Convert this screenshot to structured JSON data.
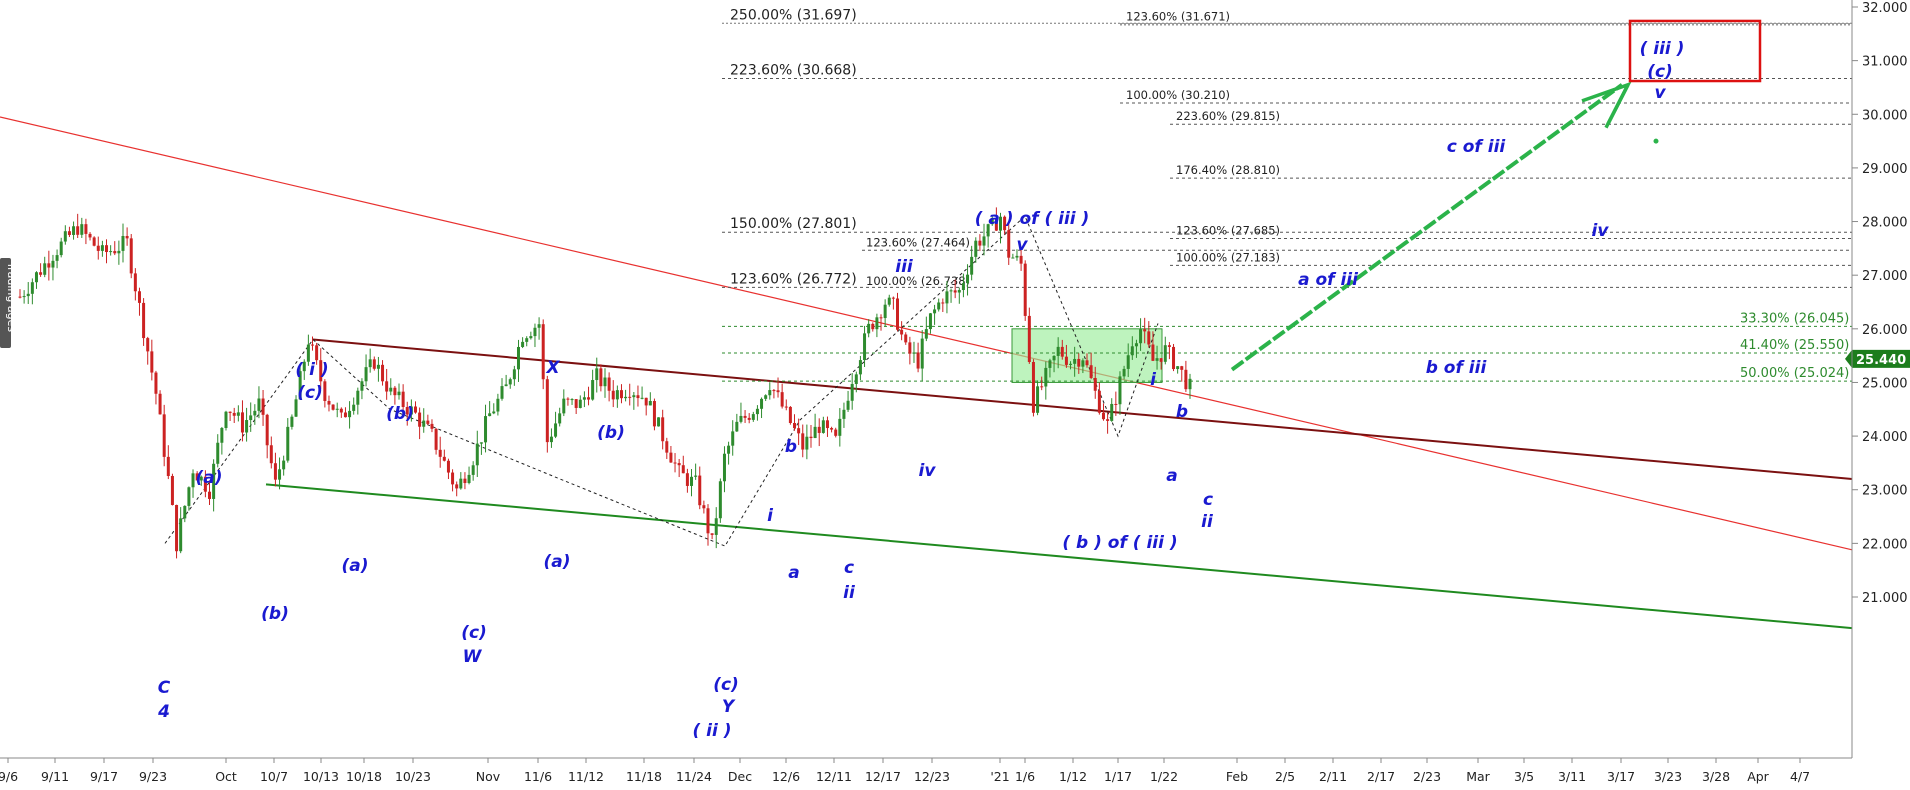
{
  "chart_data": {
    "type": "candlestick",
    "y_axis": {
      "ylim": [
        20.4,
        32.1
      ],
      "ticks": [
        "21.000",
        "22.000",
        "23.000",
        "24.000",
        "25.000",
        "26.000",
        "27.000",
        "28.000",
        "29.000",
        "30.000",
        "31.000",
        "32.000"
      ],
      "tick_values": [
        21,
        22,
        23,
        24,
        25,
        26,
        27,
        28,
        29,
        30,
        31,
        32
      ]
    },
    "x_axis": {
      "tick_labels": [
        "9/6",
        "9/11",
        "9/17",
        "9/23",
        "Oct",
        "10/7",
        "10/13",
        "10/18",
        "10/23",
        "Nov",
        "11/6",
        "11/12",
        "11/18",
        "11/24",
        "Dec",
        "12/6",
        "12/11",
        "12/17",
        "12/23",
        "'21",
        "1/6",
        "1/12",
        "1/17",
        "1/22",
        "Feb",
        "2/5",
        "2/11",
        "2/17",
        "2/23",
        "Mar",
        "3/5",
        "3/11",
        "3/17",
        "3/23",
        "3/28",
        "Apr",
        "4/7"
      ]
    },
    "last_price": "25.440",
    "price_path": [
      {
        "t": 0,
        "v": 26.6
      },
      {
        "t": 8,
        "v": 27.4
      },
      {
        "t": 14,
        "v": 27.9
      },
      {
        "t": 20,
        "v": 27.4
      },
      {
        "t": 26,
        "v": 27.6
      },
      {
        "t": 30,
        "v": 26.0
      },
      {
        "t": 33,
        "v": 24.8
      },
      {
        "t": 36,
        "v": 23.2
      },
      {
        "t": 38,
        "v": 22.0
      },
      {
        "t": 42,
        "v": 23.4
      },
      {
        "t": 46,
        "v": 23.0
      },
      {
        "t": 50,
        "v": 24.6
      },
      {
        "t": 54,
        "v": 24.2
      },
      {
        "t": 58,
        "v": 24.6
      },
      {
        "t": 62,
        "v": 23.1
      },
      {
        "t": 66,
        "v": 24.3
      },
      {
        "t": 70,
        "v": 25.8
      },
      {
        "t": 74,
        "v": 24.8
      },
      {
        "t": 78,
        "v": 24.3
      },
      {
        "t": 82,
        "v": 24.9
      },
      {
        "t": 86,
        "v": 25.4
      },
      {
        "t": 90,
        "v": 24.8
      },
      {
        "t": 96,
        "v": 24.4
      },
      {
        "t": 100,
        "v": 24.0
      },
      {
        "t": 103,
        "v": 23.5
      },
      {
        "t": 106,
        "v": 23.0
      },
      {
        "t": 110,
        "v": 23.6
      },
      {
        "t": 114,
        "v": 24.4
      },
      {
        "t": 118,
        "v": 24.9
      },
      {
        "t": 122,
        "v": 25.9
      },
      {
        "t": 126,
        "v": 26.1
      },
      {
        "t": 128,
        "v": 23.9
      },
      {
        "t": 132,
        "v": 24.6
      },
      {
        "t": 136,
        "v": 24.6
      },
      {
        "t": 140,
        "v": 25.1
      },
      {
        "t": 144,
        "v": 24.8
      },
      {
        "t": 148,
        "v": 24.9
      },
      {
        "t": 152,
        "v": 24.7
      },
      {
        "t": 156,
        "v": 24.0
      },
      {
        "t": 160,
        "v": 23.3
      },
      {
        "t": 164,
        "v": 23.1
      },
      {
        "t": 168,
        "v": 22.0
      },
      {
        "t": 171,
        "v": 23.6
      },
      {
        "t": 174,
        "v": 24.2
      },
      {
        "t": 178,
        "v": 24.5
      },
      {
        "t": 182,
        "v": 25.0
      },
      {
        "t": 186,
        "v": 24.4
      },
      {
        "t": 190,
        "v": 23.8
      },
      {
        "t": 194,
        "v": 24.2
      },
      {
        "t": 198,
        "v": 23.9
      },
      {
        "t": 202,
        "v": 25.1
      },
      {
        "t": 206,
        "v": 26.0
      },
      {
        "t": 210,
        "v": 26.5
      },
      {
        "t": 212,
        "v": 26.4
      },
      {
        "t": 215,
        "v": 25.6
      },
      {
        "t": 218,
        "v": 25.4
      },
      {
        "t": 221,
        "v": 26.2
      },
      {
        "t": 224,
        "v": 26.6
      },
      {
        "t": 228,
        "v": 26.7
      },
      {
        "t": 232,
        "v": 27.6
      },
      {
        "t": 235,
        "v": 27.8
      },
      {
        "t": 238,
        "v": 28.1
      },
      {
        "t": 240,
        "v": 27.4
      },
      {
        "t": 243,
        "v": 27.2
      },
      {
        "t": 246,
        "v": 24.6
      },
      {
        "t": 249,
        "v": 25.1
      },
      {
        "t": 252,
        "v": 25.6
      },
      {
        "t": 255,
        "v": 25.4
      },
      {
        "t": 258,
        "v": 25.5
      },
      {
        "t": 261,
        "v": 24.8
      },
      {
        "t": 264,
        "v": 24.2
      },
      {
        "t": 267,
        "v": 25.0
      },
      {
        "t": 270,
        "v": 25.8
      },
      {
        "t": 272,
        "v": 26.0
      },
      {
        "t": 275,
        "v": 25.4
      },
      {
        "t": 278,
        "v": 25.6
      },
      {
        "t": 281,
        "v": 25.3
      },
      {
        "t": 284,
        "v": 24.9
      }
    ],
    "fib_levels": [
      {
        "label": "250.00% (31.697)",
        "value": 31.697
      },
      {
        "label": "123.60% (31.671)",
        "value": 31.671
      },
      {
        "label": "223.60% (30.668)",
        "value": 30.668
      },
      {
        "label": "100.00% (30.210)",
        "value": 30.21
      },
      {
        "label": "223.60% (29.815)",
        "value": 29.815
      },
      {
        "label": "176.40% (28.810)",
        "value": 28.81
      },
      {
        "label": "150.00% (27.801)",
        "value": 27.801
      },
      {
        "label": "123.60% (27.685)",
        "value": 27.685
      },
      {
        "label": "123.60% (27.464)",
        "value": 27.464
      },
      {
        "label": "100.00% (27.183)",
        "value": 27.183
      },
      {
        "label": "123.60% (26.772)",
        "value": 26.772
      },
      {
        "label": "100.00% (26.738)",
        "value": 26.738
      },
      {
        "label": "33.30% (26.045)",
        "value": 26.045
      },
      {
        "label": "41.40% (25.550)",
        "value": 25.55
      },
      {
        "label": "50.00% (25.024)",
        "value": 25.024
      }
    ],
    "wave_labels": [
      "( iii )",
      "(c)",
      "v",
      "c of iii",
      "iv",
      "( a ) of ( iii )",
      "v",
      "iii",
      "a of iii",
      "b of iii",
      "( i )",
      "(c)",
      "(b)",
      "X",
      "(b)",
      "b",
      "i",
      "a",
      "c",
      "ii",
      "iv",
      "i",
      "b",
      "a",
      "c",
      "ii",
      "( b ) of ( iii )",
      "(a)",
      "(a)",
      "(a)",
      "(b)",
      "(c)",
      "W",
      "(c)",
      "Y",
      "( ii )",
      "C",
      "4"
    ],
    "colors": {
      "up_candle": "#2e8b2e",
      "down_candle": "#cc2222",
      "red_trendline": "#e8312f",
      "upper_channel": "#7b1010",
      "lower_channel": "#1f8a1f",
      "projection_arrow": "#2bb34a",
      "target_box": "#dd1111",
      "zone_fill": "#9bec9b",
      "price_tag": "#1d7d1d"
    },
    "side_tab": "Trading ages"
  }
}
